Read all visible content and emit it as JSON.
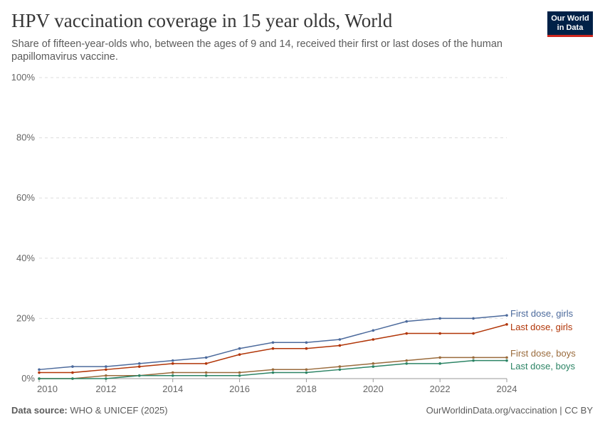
{
  "header": {
    "title": "HPV vaccination coverage in 15 year olds, World",
    "subtitle": "Share of fifteen-year-olds who, between the ages of 9 and 14, received their first or last doses of the human papillomavirus vaccine.",
    "logo": "Our World in Data"
  },
  "footer": {
    "source_label": "Data source:",
    "source": "WHO & UNICEF (2025)",
    "credit": "OurWorldinData.org/vaccination | CC BY"
  },
  "chart_data": {
    "type": "line",
    "title": "HPV vaccination coverage in 15 year olds, World",
    "x": [
      2010,
      2011,
      2012,
      2013,
      2014,
      2015,
      2016,
      2017,
      2018,
      2019,
      2020,
      2021,
      2022,
      2023,
      2024
    ],
    "xticks": [
      "2010",
      "2012",
      "2014",
      "2016",
      "2018",
      "2020",
      "2022",
      "2024"
    ],
    "yticks": [
      "0%",
      "20%",
      "40%",
      "60%",
      "80%",
      "100%"
    ],
    "ylim": [
      0,
      100
    ],
    "grid": "horizontal dashed",
    "legend": "right, inline labels",
    "series": [
      {
        "name": "First dose, girls",
        "color": "#4c6a9c",
        "values": [
          3,
          4,
          4,
          5,
          6,
          7,
          10,
          12,
          12,
          13,
          16,
          19,
          20,
          20,
          21
        ]
      },
      {
        "name": "Last dose, girls",
        "color": "#b13507",
        "values": [
          2,
          2,
          3,
          4,
          5,
          5,
          8,
          10,
          10,
          11,
          13,
          15,
          15,
          15,
          18
        ]
      },
      {
        "name": "First dose, boys",
        "color": "#9a6b3c",
        "values": [
          0,
          0,
          1,
          1,
          2,
          2,
          2,
          3,
          3,
          4,
          5,
          6,
          7,
          7,
          7
        ]
      },
      {
        "name": "Last dose, boys",
        "color": "#2c8465",
        "values": [
          0,
          0,
          0,
          1,
          1,
          1,
          1,
          2,
          2,
          3,
          4,
          5,
          5,
          6,
          6
        ]
      }
    ]
  }
}
